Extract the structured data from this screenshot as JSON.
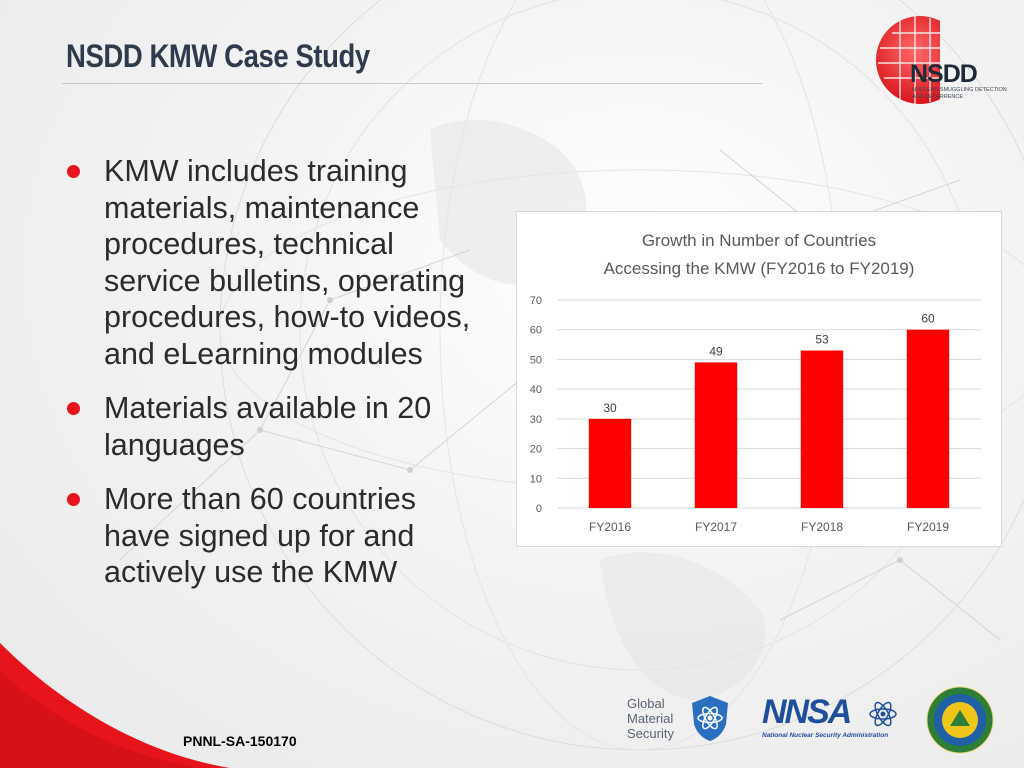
{
  "slide": {
    "title": "NSDD KMW Case Study",
    "doc_id": "PNNL-SA-150170"
  },
  "bullets": [
    "KMW includes training materials, maintenance procedures, technical service bulletins, operating procedures, how-to videos, and eLearning modules",
    "Materials available in 20 languages",
    "More than 60 countries have signed up for and actively use the KMW"
  ],
  "logos": {
    "nsdd": {
      "mark": "NSDD",
      "subtitle": "NUCLEAR SMUGGLING DETECTION AND DETERRENCE"
    },
    "gms": {
      "text": "Global Material Security"
    },
    "nnsa": {
      "mark": "NNSA",
      "subtitle": "National Nuclear Security Administration"
    }
  },
  "colors": {
    "accent": "#e8141c",
    "bar": "#ff0000",
    "title": "#2e3b4c"
  },
  "chart_data": {
    "type": "bar",
    "title": "Growth in Number of Countries Accessing the KMW (FY2016 to FY2019)",
    "title_lines": [
      "Growth in Number of Countries",
      "Accessing the KMW (FY2016 to FY2019)"
    ],
    "categories": [
      "FY2016",
      "FY2017",
      "FY2018",
      "FY2019"
    ],
    "values": [
      30,
      49,
      53,
      60
    ],
    "data_labels": [
      "30",
      "49",
      "53",
      "60"
    ],
    "ylim": [
      0,
      70
    ],
    "yticks": [
      0,
      10,
      20,
      30,
      40,
      50,
      60,
      70
    ],
    "ytick_labels": [
      "0",
      "10",
      "20",
      "30",
      "40",
      "50",
      "60",
      "70"
    ],
    "grid": true,
    "legend": "none",
    "xlabel": "",
    "ylabel": ""
  }
}
